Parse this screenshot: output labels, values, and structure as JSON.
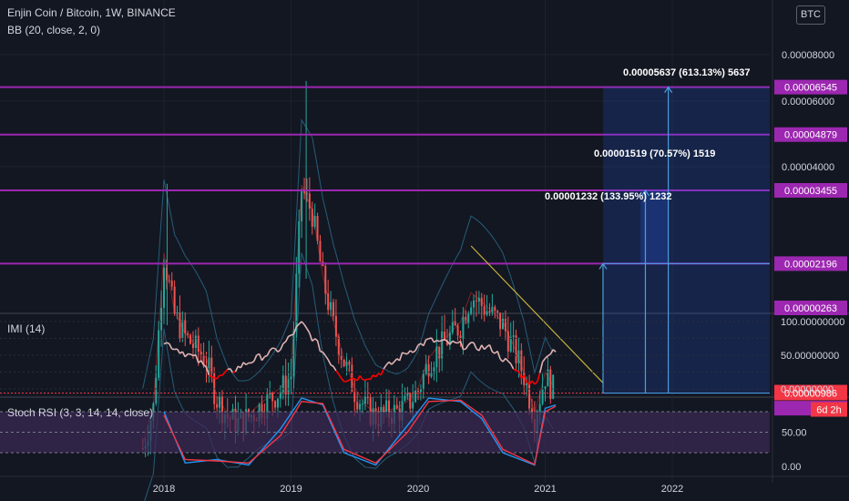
{
  "header": {
    "symbol_line": "Enjin Coin / Bitcoin, 1W, BINANCE",
    "indicator_line": "BB (20, close, 2, 0)",
    "currency_button": "BTC"
  },
  "colors": {
    "background": "#131722",
    "up_candle": "#26a69a",
    "down_candle": "#ef5350",
    "level_line": "#9c27b0",
    "level_label_bg": "#9c27b0",
    "bb_basis": "#872323",
    "bb_band": "#2a6f8f",
    "trendline": "#c5b13c",
    "projection": "#2962ff",
    "imi_line": "#e0b4b4",
    "imi_low": "#ff0000",
    "stoch_k": "#2196f3",
    "stoch_d": "#f23645",
    "stoch_fill": "#3c2a55",
    "last_price_bg": "#f23645"
  },
  "chart_data": [
    {
      "type": "candlestick",
      "title": "Enjin Coin / Bitcoin, 1W, BINANCE",
      "y_scale": "log",
      "y_ticks": [
        "0.00008000",
        "0.00006000",
        "0.00004000"
      ],
      "x_ticks": [
        "2018",
        "2019",
        "2020",
        "2021",
        "2022"
      ],
      "horizontal_levels": [
        "0.00006545",
        "0.00004879",
        "0.00003455",
        "0.00002196",
        "0.00001613",
        "0.00000898",
        "0.00000263"
      ],
      "last_price": "0.00000986",
      "countdown": "6d 2h",
      "close_series": [
        {
          "date": "2017-11",
          "value": 7e-06
        },
        {
          "date": "2017-12",
          "value": 9e-06
        },
        {
          "date": "2018-01",
          "value": 2.3e-05
        },
        {
          "date": "2018-02",
          "value": 1.6e-05
        },
        {
          "date": "2018-03",
          "value": 1.4e-05
        },
        {
          "date": "2018-04",
          "value": 1.3e-05
        },
        {
          "date": "2018-05",
          "value": 1.2e-05
        },
        {
          "date": "2018-06",
          "value": 9.5e-06
        },
        {
          "date": "2018-07",
          "value": 8.5e-06
        },
        {
          "date": "2018-08",
          "value": 8.2e-06
        },
        {
          "date": "2018-09",
          "value": 8.5e-06
        },
        {
          "date": "2018-10",
          "value": 9e-06
        },
        {
          "date": "2018-11",
          "value": 9.5e-06
        },
        {
          "date": "2018-12",
          "value": 1e-05
        },
        {
          "date": "2019-01",
          "value": 1.1e-05
        },
        {
          "date": "2019-02",
          "value": 3.5e-05
        },
        {
          "date": "2019-03",
          "value": 3e-05
        },
        {
          "date": "2019-04",
          "value": 2e-05
        },
        {
          "date": "2019-05",
          "value": 1.5e-05
        },
        {
          "date": "2019-06",
          "value": 1.2e-05
        },
        {
          "date": "2019-07",
          "value": 1e-05
        },
        {
          "date": "2019-08",
          "value": 9e-06
        },
        {
          "date": "2019-09",
          "value": 8.5e-06
        },
        {
          "date": "2019-10",
          "value": 8.7e-06
        },
        {
          "date": "2019-11",
          "value": 8.8e-06
        },
        {
          "date": "2019-12",
          "value": 9.2e-06
        },
        {
          "date": "2020-01",
          "value": 1e-05
        },
        {
          "date": "2020-02",
          "value": 1.2e-05
        },
        {
          "date": "2020-03",
          "value": 1.3e-05
        },
        {
          "date": "2020-04",
          "value": 1.4e-05
        },
        {
          "date": "2020-05",
          "value": 1.5e-05
        },
        {
          "date": "2020-06",
          "value": 1.8e-05
        },
        {
          "date": "2020-07",
          "value": 1.7e-05
        },
        {
          "date": "2020-08",
          "value": 1.6e-05
        },
        {
          "date": "2020-09",
          "value": 1.5e-05
        },
        {
          "date": "2020-10",
          "value": 1.3e-05
        },
        {
          "date": "2020-11",
          "value": 1.1e-05
        },
        {
          "date": "2020-12",
          "value": 8.5e-06
        },
        {
          "date": "2021-01",
          "value": 1.1e-05
        },
        {
          "date": "2021-02",
          "value": 9.86e-06
        }
      ],
      "annotations": [
        "0.00005637 (613.13%) 5637",
        "0.00001519 (70.57%) 1519",
        "0.00001232 (133.95%) 1232"
      ]
    },
    {
      "type": "line",
      "title": "IMI (14)",
      "y_ticks": [
        "100.00000000",
        "50.00000000",
        "0.00000000"
      ],
      "ylim": [
        0,
        100
      ],
      "series": [
        {
          "name": "IMI",
          "values": [
            {
              "date": "2018-01",
              "value": 70
            },
            {
              "date": "2018-04",
              "value": 45
            },
            {
              "date": "2018-06",
              "value": 15
            },
            {
              "date": "2018-09",
              "value": 40
            },
            {
              "date": "2018-12",
              "value": 60
            },
            {
              "date": "2019-02",
              "value": 98
            },
            {
              "date": "2019-04",
              "value": 55
            },
            {
              "date": "2019-06",
              "value": 15
            },
            {
              "date": "2019-09",
              "value": 20
            },
            {
              "date": "2019-12",
              "value": 55
            },
            {
              "date": "2020-02",
              "value": 72
            },
            {
              "date": "2020-05",
              "value": 65
            },
            {
              "date": "2020-08",
              "value": 60
            },
            {
              "date": "2020-10",
              "value": 30
            },
            {
              "date": "2020-12",
              "value": 5
            },
            {
              "date": "2021-01",
              "value": 50
            },
            {
              "date": "2021-02",
              "value": 55
            }
          ]
        }
      ]
    },
    {
      "type": "line",
      "title": "Stoch RSI (3, 3, 14, 14, close)",
      "y_ticks": [
        "50.00",
        "0.00"
      ],
      "ylim": [
        0,
        100
      ],
      "bands": [
        20,
        80
      ],
      "series": [
        {
          "name": "K",
          "values": [
            {
              "date": "2018-01",
              "value": 80
            },
            {
              "date": "2018-03",
              "value": 5
            },
            {
              "date": "2018-06",
              "value": 10
            },
            {
              "date": "2018-09",
              "value": 2
            },
            {
              "date": "2018-12",
              "value": 55
            },
            {
              "date": "2019-02",
              "value": 100
            },
            {
              "date": "2019-04",
              "value": 90
            },
            {
              "date": "2019-06",
              "value": 20
            },
            {
              "date": "2019-09",
              "value": 2
            },
            {
              "date": "2019-12",
              "value": 60
            },
            {
              "date": "2020-02",
              "value": 100
            },
            {
              "date": "2020-05",
              "value": 95
            },
            {
              "date": "2020-07",
              "value": 70
            },
            {
              "date": "2020-09",
              "value": 20
            },
            {
              "date": "2020-12",
              "value": 2
            },
            {
              "date": "2021-01",
              "value": 85
            },
            {
              "date": "2021-02",
              "value": 90
            }
          ]
        },
        {
          "name": "D",
          "values": [
            {
              "date": "2018-01",
              "value": 75
            },
            {
              "date": "2018-03",
              "value": 10
            },
            {
              "date": "2018-06",
              "value": 8
            },
            {
              "date": "2018-09",
              "value": 5
            },
            {
              "date": "2018-12",
              "value": 45
            },
            {
              "date": "2019-02",
              "value": 95
            },
            {
              "date": "2019-04",
              "value": 92
            },
            {
              "date": "2019-06",
              "value": 25
            },
            {
              "date": "2019-09",
              "value": 5
            },
            {
              "date": "2019-12",
              "value": 50
            },
            {
              "date": "2020-02",
              "value": 95
            },
            {
              "date": "2020-05",
              "value": 97
            },
            {
              "date": "2020-07",
              "value": 75
            },
            {
              "date": "2020-09",
              "value": 25
            },
            {
              "date": "2020-12",
              "value": 3
            },
            {
              "date": "2021-01",
              "value": 80
            },
            {
              "date": "2021-02",
              "value": 88
            }
          ]
        }
      ]
    }
  ]
}
